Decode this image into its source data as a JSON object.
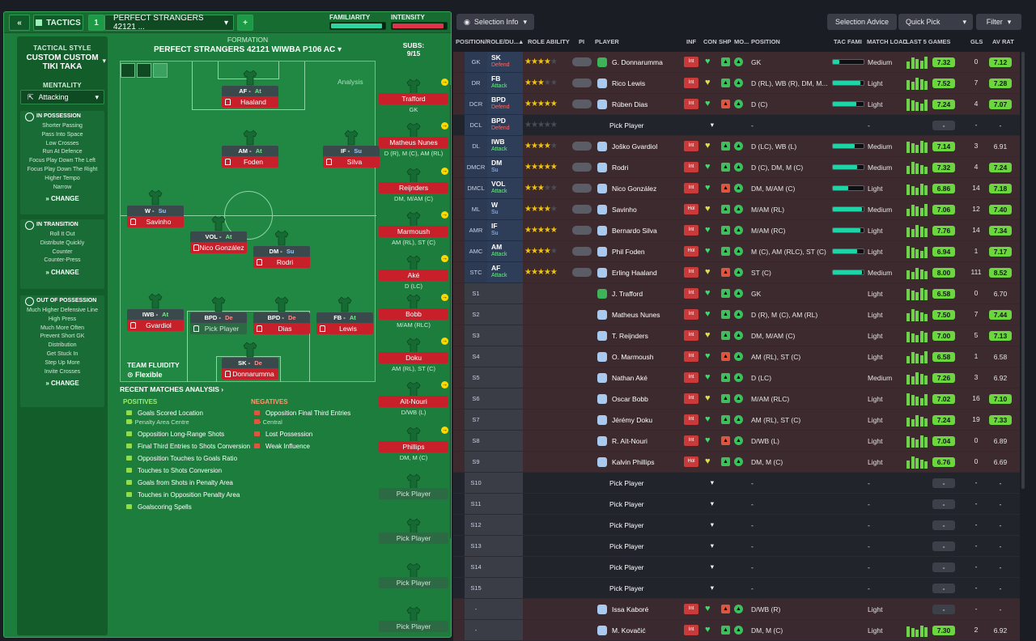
{
  "topbar": {
    "back_label": "«",
    "tactics_label": "TACTICS",
    "slot": "1",
    "tactic_name": "PERFECT STRANGERS 42121 ...",
    "add_label": "+",
    "familiarity_label": "FAMILIARITY",
    "intensity_label": "INTENSITY",
    "familiarity_value": 0.95,
    "intensity_value": 0.96
  },
  "sidebar": {
    "style_head": "TACTICAL STYLE",
    "style_title": "CUSTOM CUSTOM TIKI TAKA",
    "mentality_head": "MENTALITY",
    "mentality_value": "Attacking",
    "in_possession": {
      "title": "IN POSSESSION",
      "items": [
        "Shorter Passing",
        "Pass Into Space",
        "Low Crosses",
        "Run At Defence",
        "Focus Play Down The Left",
        "Focus Play Down The Right",
        "Higher Tempo",
        "Narrow"
      ],
      "change": "CHANGE"
    },
    "in_transition": {
      "title": "IN TRANSITION",
      "items": [
        "Roll It Out",
        "Distribute Quickly",
        "Counter",
        "Counter-Press"
      ],
      "change": "CHANGE"
    },
    "out_of_possession": {
      "title": "OUT OF POSSESSION",
      "items": [
        "Much Higher Defensive Line",
        "High Press",
        "Much More Often",
        "Prevent Short GK",
        "Distribution",
        "Get Stuck In",
        "Step Up More",
        "Invite Crosses"
      ],
      "change": "CHANGE"
    }
  },
  "formation": {
    "head": "FORMATION",
    "name": "PERFECT STRANGERS 42121 WIWBA P106 AC",
    "analysis": "Analysis",
    "players": [
      {
        "role": "AF",
        "duty": "At",
        "name": "Haaland"
      },
      {
        "role": "AM",
        "duty": "At",
        "name": "Foden"
      },
      {
        "role": "IF",
        "duty": "Su",
        "name": "Silva"
      },
      {
        "role": "W",
        "duty": "Su",
        "name": "Savinho"
      },
      {
        "role": "VOL",
        "duty": "At",
        "name": "Nico González"
      },
      {
        "role": "DM",
        "duty": "Su",
        "name": "Rodri"
      },
      {
        "role": "IWB",
        "duty": "At",
        "name": "Gvardiol"
      },
      {
        "role": "BPD",
        "duty": "De",
        "name": "Pick Player"
      },
      {
        "role": "BPD",
        "duty": "De",
        "name": "Dias"
      },
      {
        "role": "FB",
        "duty": "At",
        "name": "Lewis"
      },
      {
        "role": "SK",
        "duty": "De",
        "name": "Donnarumma"
      }
    ],
    "fluidity_head": "TEAM FLUIDITY",
    "fluidity": "Flexible"
  },
  "subs": {
    "head": "SUBS:",
    "count": "9/15",
    "players": [
      {
        "name": "Trafford",
        "pos": "GK"
      },
      {
        "name": "Matheus Nunes",
        "pos": "D (R), M (C), AM (RL)"
      },
      {
        "name": "Reijnders",
        "pos": "DM, M/AM (C)"
      },
      {
        "name": "Marmoush",
        "pos": "AM (RL), ST (C)"
      },
      {
        "name": "Aké",
        "pos": "D (LC)"
      },
      {
        "name": "Bobb",
        "pos": "M/AM (RLC)"
      },
      {
        "name": "Doku",
        "pos": "AM (RL), ST (C)"
      },
      {
        "name": "Aït-Nouri",
        "pos": "D/WB (L)"
      },
      {
        "name": "Phillips",
        "pos": "DM, M (C)"
      },
      {
        "name": "Pick Player",
        "pos": ""
      },
      {
        "name": "Pick Player",
        "pos": ""
      },
      {
        "name": "Pick Player",
        "pos": ""
      },
      {
        "name": "Pick Player",
        "pos": ""
      }
    ]
  },
  "analysis": {
    "head": "RECENT MATCHES ANALYSIS ›",
    "pos_head": "POSITIVES",
    "neg_head": "NEGATIVES",
    "positives": [
      "Goals Scored Location",
      "Opposition Long-Range Shots",
      "Final Third Entries to Shots Conversion",
      "Opposition Touches to Goals Ratio",
      "Touches to Shots Conversion",
      "Goals from Shots in Penalty Area",
      "Touches in Opposition Penalty Area",
      "Goalscoring Spells"
    ],
    "positive_sub": "- Penalty Area Centre",
    "negatives": [
      "Opposition Final Third Entries",
      "Lost Possession",
      "Weak Influence"
    ],
    "negative_sub": "- Central"
  },
  "right": {
    "selection_info": "Selection Info",
    "selection_advice": "Selection Advice",
    "quick_pick": "Quick Pick",
    "filter": "Filter",
    "headers": {
      "pos": "POSITION/ROLE/DU...",
      "ability": "ROLE ABILITY",
      "pi": "PI",
      "player": "PLAYER",
      "inf": "INF",
      "con": "CON",
      "shp": "SHP",
      "mo": "MO...",
      "position": "POSITION",
      "tac": "TAC FAMI",
      "load": "MATCH LOAD",
      "last5": "LAST 5 GAMES",
      "gls": "GLS",
      "avrat": "AV RAT"
    },
    "rows": [
      {
        "pos": "GK",
        "role": "SK",
        "duty": "Defend",
        "stars": 4,
        "player": "G. Donnarumma",
        "inf": "Int",
        "position": "GK",
        "tac": 0.2,
        "load": "Medium",
        "last": "7.32",
        "gls": "0",
        "av": "7.12"
      },
      {
        "pos": "DR",
        "role": "FB",
        "duty": "Attack",
        "stars": 3,
        "player": "Rico Lewis",
        "inf": "Int",
        "position": "D (RL), WB (R), DM, M...",
        "tac": 0.9,
        "load": "Light",
        "last": "7.52",
        "gls": "7",
        "av": "7.28"
      },
      {
        "pos": "DCR",
        "role": "BPD",
        "duty": "Defend",
        "stars": 4.5,
        "player": "Rúben Dias",
        "inf": "Int",
        "position": "D (C)",
        "tac": 0.75,
        "load": "Light",
        "last": "7.24",
        "gls": "4",
        "av": "7.07"
      },
      {
        "pos": "DCL",
        "role": "BPD",
        "duty": "Defend",
        "stars": 0,
        "player": "Pick Player",
        "inf": "",
        "position": "-",
        "tac": 0,
        "load": "-",
        "last": "-",
        "gls": "-",
        "av": "-"
      },
      {
        "pos": "DL",
        "role": "IWB",
        "duty": "Attack",
        "stars": 4,
        "player": "Joško Gvardiol",
        "inf": "Int",
        "position": "D (LC), WB (L)",
        "tac": 0.7,
        "load": "Medium",
        "last": "7.14",
        "gls": "3",
        "av": "6.91"
      },
      {
        "pos": "DMCR",
        "role": "DM",
        "duty": "Su",
        "stars": 5,
        "player": "Rodri",
        "inf": "Int",
        "position": "D (C), DM, M (C)",
        "tac": 0.8,
        "load": "Medium",
        "last": "7.32",
        "gls": "4",
        "av": "7.24"
      },
      {
        "pos": "DMCL",
        "role": "VOL",
        "duty": "Attack",
        "stars": 2.5,
        "player": "Nico González",
        "inf": "Int",
        "position": "DM, M/AM (C)",
        "tac": 0.5,
        "load": "Light",
        "last": "6.86",
        "gls": "14",
        "av": "7.18"
      },
      {
        "pos": "ML",
        "role": "W",
        "duty": "Su",
        "stars": 4,
        "player": "Savinho",
        "inf": "Hol",
        "position": "M/AM (RL)",
        "tac": 0.95,
        "load": "Medium",
        "last": "7.06",
        "gls": "12",
        "av": "7.40"
      },
      {
        "pos": "AMR",
        "role": "IF",
        "duty": "Su",
        "stars": 4.5,
        "player": "Bernardo Silva",
        "inf": "Int",
        "position": "M/AM (RC)",
        "tac": 0.9,
        "load": "Light",
        "last": "7.76",
        "gls": "14",
        "av": "7.34"
      },
      {
        "pos": "AMC",
        "role": "AM",
        "duty": "Attack",
        "stars": 4,
        "player": "Phil Foden",
        "inf": "Hol",
        "position": "M (C), AM (RLC), ST (C)",
        "tac": 0.8,
        "load": "Light",
        "last": "6.94",
        "gls": "1",
        "av": "7.17"
      },
      {
        "pos": "STC",
        "role": "AF",
        "duty": "Attack",
        "stars": 5,
        "player": "Erling Haaland",
        "inf": "Int",
        "position": "ST (C)",
        "tac": 0.95,
        "load": "Medium",
        "last": "8.00",
        "gls": "111",
        "av": "8.52"
      },
      {
        "pos": "S1",
        "role": "",
        "duty": "",
        "stars": -1,
        "player": "J. Trafford",
        "inf": "Int",
        "position": "GK",
        "tac": 0,
        "load": "Light",
        "last": "6.58",
        "gls": "0",
        "av": "6.70"
      },
      {
        "pos": "S2",
        "role": "",
        "duty": "",
        "stars": -1,
        "player": "Matheus Nunes",
        "inf": "Int",
        "position": "D (R), M (C), AM (RL)",
        "tac": 0,
        "load": "Light",
        "last": "7.50",
        "gls": "7",
        "av": "7.44"
      },
      {
        "pos": "S3",
        "role": "",
        "duty": "",
        "stars": -1,
        "player": "T. Reijnders",
        "inf": "Int",
        "position": "DM, M/AM (C)",
        "tac": 0,
        "load": "Light",
        "last": "7.00",
        "gls": "5",
        "av": "7.13"
      },
      {
        "pos": "S4",
        "role": "",
        "duty": "",
        "stars": -1,
        "player": "O. Marmoush",
        "inf": "Int",
        "position": "AM (RL), ST (C)",
        "tac": 0,
        "load": "Light",
        "last": "6.58",
        "gls": "1",
        "av": "6.58"
      },
      {
        "pos": "S5",
        "role": "",
        "duty": "",
        "stars": -1,
        "player": "Nathan Aké",
        "inf": "Int",
        "position": "D (LC)",
        "tac": 0,
        "load": "Medium",
        "last": "7.26",
        "gls": "3",
        "av": "6.92"
      },
      {
        "pos": "S6",
        "role": "",
        "duty": "",
        "stars": -1,
        "player": "Oscar Bobb",
        "inf": "Int",
        "position": "M/AM (RLC)",
        "tac": 0,
        "load": "Light",
        "last": "7.02",
        "gls": "16",
        "av": "7.10"
      },
      {
        "pos": "S7",
        "role": "",
        "duty": "",
        "stars": -1,
        "player": "Jérémy Doku",
        "inf": "Int",
        "position": "AM (RL), ST (C)",
        "tac": 0,
        "load": "Light",
        "last": "7.24",
        "gls": "19",
        "av": "7.33"
      },
      {
        "pos": "S8",
        "role": "",
        "duty": "",
        "stars": -1,
        "player": "R. Aït-Nouri",
        "inf": "Int",
        "position": "D/WB (L)",
        "tac": 0,
        "load": "Light",
        "last": "7.04",
        "gls": "0",
        "av": "6.89"
      },
      {
        "pos": "S9",
        "role": "",
        "duty": "",
        "stars": -1,
        "player": "Kalvin Phillips",
        "inf": "Hol",
        "position": "DM, M (C)",
        "tac": 0,
        "load": "Light",
        "last": "6.76",
        "gls": "0",
        "av": "6.69"
      },
      {
        "pos": "S10",
        "role": "",
        "duty": "",
        "stars": -1,
        "player": "Pick Player",
        "inf": "",
        "position": "-",
        "tac": 0,
        "load": "-",
        "last": "-",
        "gls": "-",
        "av": "-"
      },
      {
        "pos": "S11",
        "role": "",
        "duty": "",
        "stars": -1,
        "player": "Pick Player",
        "inf": "",
        "position": "-",
        "tac": 0,
        "load": "-",
        "last": "-",
        "gls": "-",
        "av": "-"
      },
      {
        "pos": "S12",
        "role": "",
        "duty": "",
        "stars": -1,
        "player": "Pick Player",
        "inf": "",
        "position": "-",
        "tac": 0,
        "load": "-",
        "last": "-",
        "gls": "-",
        "av": "-"
      },
      {
        "pos": "S13",
        "role": "",
        "duty": "",
        "stars": -1,
        "player": "Pick Player",
        "inf": "",
        "position": "-",
        "tac": 0,
        "load": "-",
        "last": "-",
        "gls": "-",
        "av": "-"
      },
      {
        "pos": "S14",
        "role": "",
        "duty": "",
        "stars": -1,
        "player": "Pick Player",
        "inf": "",
        "position": "-",
        "tac": 0,
        "load": "-",
        "last": "-",
        "gls": "-",
        "av": "-"
      },
      {
        "pos": "S15",
        "role": "",
        "duty": "",
        "stars": -1,
        "player": "Pick Player",
        "inf": "",
        "position": "-",
        "tac": 0,
        "load": "-",
        "last": "-",
        "gls": "-",
        "av": "-"
      },
      {
        "pos": "-",
        "role": "",
        "duty": "",
        "stars": -1,
        "player": "Issa Kaboré",
        "inf": "Int",
        "position": "D/WB (R)",
        "tac": 0,
        "load": "Light",
        "last": "-",
        "gls": "-",
        "av": "-"
      },
      {
        "pos": "-",
        "role": "",
        "duty": "",
        "stars": -1,
        "player": "M. Kovačić",
        "inf": "Int",
        "position": "DM, M (C)",
        "tac": 0,
        "load": "Light",
        "last": "7.30",
        "gls": "2",
        "av": "6.92"
      }
    ]
  }
}
